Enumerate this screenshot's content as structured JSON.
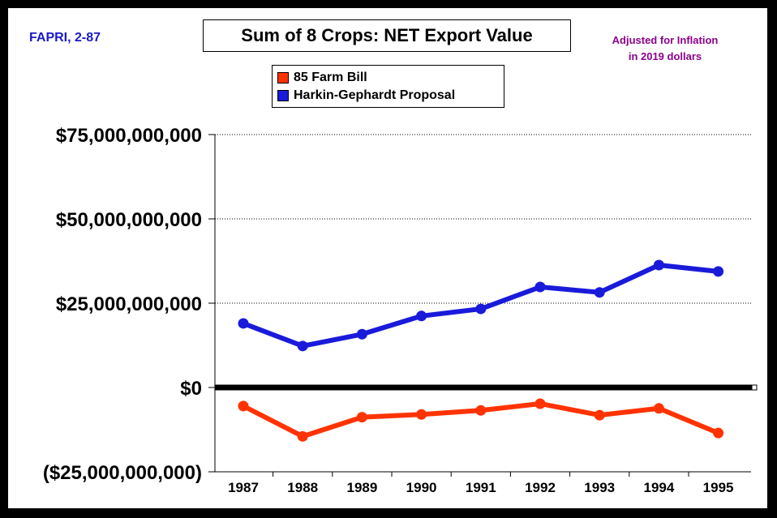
{
  "source_note": "FAPRI, 2-87",
  "adjustment_note": [
    "Adjusted for Inflation",
    "in 2019 dollars"
  ],
  "chart_data": {
    "type": "line",
    "title": "Sum of 8 Crops:  NET Export Value",
    "xlabel": "",
    "ylabel": "",
    "x": [
      "1987",
      "1988",
      "1989",
      "1990",
      "1991",
      "1992",
      "1993",
      "1994",
      "1995"
    ],
    "ylim": [
      -25000000000,
      75000000000
    ],
    "y_ticks": [
      75000000000,
      50000000000,
      25000000000,
      0,
      -25000000000
    ],
    "y_tick_labels": [
      "$75,000,000,000",
      "$50,000,000,000",
      "$25,000,000,000",
      "$0",
      "($25,000,000,000)"
    ],
    "grid": true,
    "legend_position": "top-center",
    "series": [
      {
        "name": "85 Farm Bill",
        "color": "#ff3300",
        "values": [
          -5500000000,
          -14500000000,
          -8800000000,
          -8000000000,
          -6800000000,
          -4800000000,
          -8200000000,
          -6200000000,
          -13500000000
        ]
      },
      {
        "name": "Harkin-Gephardt Proposal",
        "color": "#1a1adb",
        "values": [
          19000000000,
          12300000000,
          15800000000,
          21200000000,
          23300000000,
          29800000000,
          28200000000,
          36300000000,
          34400000000
        ]
      }
    ]
  }
}
